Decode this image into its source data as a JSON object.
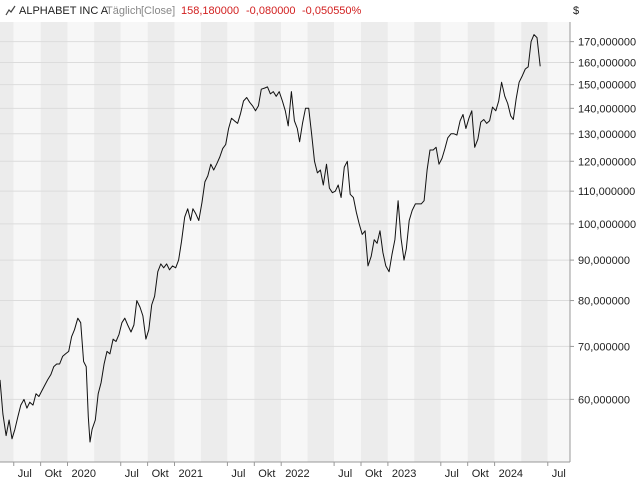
{
  "header": {
    "title": "ALPHABET INC A",
    "interval": "Täglich",
    "mode": "[Close]",
    "last": "158,180000",
    "change": "-0,080000",
    "change_pct": "-0,050550%",
    "currency": "$"
  },
  "colors": {
    "negative": "#d22020",
    "line": "#111111",
    "band_light": "#f7f7f7",
    "band_dark": "#ececec",
    "grid": "#dcdcdc",
    "axis": "#999999"
  },
  "chart_data": {
    "type": "line",
    "title": "ALPHABET INC A",
    "scale": "log",
    "ylim": [
      50,
      180
    ],
    "xlim": [
      "2019-05-15",
      "2024-09-15"
    ],
    "grid": true,
    "y_ticks": [
      {
        "value": 60,
        "label": "60,000000"
      },
      {
        "value": 70,
        "label": "70,000000"
      },
      {
        "value": 80,
        "label": "80,000000"
      },
      {
        "value": 90,
        "label": "90,000000"
      },
      {
        "value": 100,
        "label": "100,000000"
      },
      {
        "value": 110,
        "label": "110,000000"
      },
      {
        "value": 120,
        "label": "120,000000"
      },
      {
        "value": 130,
        "label": "130,000000"
      },
      {
        "value": 140,
        "label": "140,000000"
      },
      {
        "value": 150,
        "label": "150,000000"
      },
      {
        "value": 160,
        "label": "160,000000"
      },
      {
        "value": 170,
        "label": "170,000000"
      }
    ],
    "x_ticks": [
      {
        "date": "2019-07-01",
        "label": "Jul"
      },
      {
        "date": "2019-10-01",
        "label": "Okt"
      },
      {
        "date": "2020-01-01",
        "label": "2020"
      },
      {
        "date": "2020-07-01",
        "label": "Jul"
      },
      {
        "date": "2020-10-01",
        "label": "Okt"
      },
      {
        "date": "2021-01-01",
        "label": "2021"
      },
      {
        "date": "2021-07-01",
        "label": "Jul"
      },
      {
        "date": "2021-10-01",
        "label": "Okt"
      },
      {
        "date": "2022-01-01",
        "label": "2022"
      },
      {
        "date": "2022-07-01",
        "label": "Jul"
      },
      {
        "date": "2022-10-01",
        "label": "Okt"
      },
      {
        "date": "2023-01-01",
        "label": "2023"
      },
      {
        "date": "2023-07-01",
        "label": "Jul"
      },
      {
        "date": "2023-10-01",
        "label": "Okt"
      },
      {
        "date": "2024-01-01",
        "label": "2024"
      },
      {
        "date": "2024-07-01",
        "label": "Jul"
      }
    ],
    "series": [
      {
        "x": [
          "2019-05-15",
          "2019-05-25",
          "2019-06-05",
          "2019-06-15",
          "2019-06-25",
          "2019-07-05",
          "2019-07-15",
          "2019-07-25",
          "2019-08-05",
          "2019-08-15",
          "2019-08-25",
          "2019-09-05",
          "2019-09-15",
          "2019-09-25",
          "2019-10-05",
          "2019-10-15",
          "2019-10-25",
          "2019-11-05",
          "2019-11-15",
          "2019-11-25",
          "2019-12-05",
          "2019-12-15",
          "2019-12-25",
          "2020-01-05",
          "2020-01-15",
          "2020-01-25",
          "2020-02-05",
          "2020-02-15",
          "2020-02-25",
          "2020-03-05",
          "2020-03-12",
          "2020-03-18",
          "2020-03-25",
          "2020-04-05",
          "2020-04-15",
          "2020-04-25",
          "2020-05-05",
          "2020-05-15",
          "2020-05-25",
          "2020-06-05",
          "2020-06-15",
          "2020-06-25",
          "2020-07-05",
          "2020-07-15",
          "2020-07-25",
          "2020-08-05",
          "2020-08-15",
          "2020-08-25",
          "2020-09-05",
          "2020-09-15",
          "2020-09-25",
          "2020-10-05",
          "2020-10-15",
          "2020-10-25",
          "2020-11-05",
          "2020-11-15",
          "2020-11-25",
          "2020-12-05",
          "2020-12-15",
          "2020-12-25",
          "2021-01-05",
          "2021-01-15",
          "2021-01-25",
          "2021-02-05",
          "2021-02-15",
          "2021-02-25",
          "2021-03-05",
          "2021-03-15",
          "2021-03-25",
          "2021-04-05",
          "2021-04-15",
          "2021-04-25",
          "2021-05-05",
          "2021-05-15",
          "2021-05-25",
          "2021-06-05",
          "2021-06-15",
          "2021-06-25",
          "2021-07-05",
          "2021-07-15",
          "2021-07-25",
          "2021-08-05",
          "2021-08-15",
          "2021-08-25",
          "2021-09-05",
          "2021-09-15",
          "2021-09-25",
          "2021-10-05",
          "2021-10-15",
          "2021-10-25",
          "2021-11-05",
          "2021-11-15",
          "2021-11-25",
          "2021-12-05",
          "2021-12-15",
          "2021-12-25",
          "2022-01-05",
          "2022-01-15",
          "2022-01-25",
          "2022-02-05",
          "2022-02-15",
          "2022-02-25",
          "2022-03-05",
          "2022-03-15",
          "2022-03-25",
          "2022-04-05",
          "2022-04-15",
          "2022-04-25",
          "2022-05-05",
          "2022-05-15",
          "2022-05-25",
          "2022-06-05",
          "2022-06-15",
          "2022-06-25",
          "2022-07-05",
          "2022-07-15",
          "2022-07-25",
          "2022-08-05",
          "2022-08-15",
          "2022-08-25",
          "2022-09-05",
          "2022-09-15",
          "2022-09-25",
          "2022-10-05",
          "2022-10-15",
          "2022-10-25",
          "2022-11-05",
          "2022-11-15",
          "2022-11-25",
          "2022-12-05",
          "2022-12-15",
          "2022-12-25",
          "2023-01-05",
          "2023-01-15",
          "2023-01-25",
          "2023-02-05",
          "2023-02-15",
          "2023-02-25",
          "2023-03-05",
          "2023-03-15",
          "2023-03-25",
          "2023-04-05",
          "2023-04-15",
          "2023-04-25",
          "2023-05-05",
          "2023-05-15",
          "2023-05-25",
          "2023-06-05",
          "2023-06-15",
          "2023-06-25",
          "2023-07-05",
          "2023-07-15",
          "2023-07-25",
          "2023-08-05",
          "2023-08-15",
          "2023-08-25",
          "2023-09-05",
          "2023-09-15",
          "2023-09-25",
          "2023-10-05",
          "2023-10-15",
          "2023-10-25",
          "2023-11-05",
          "2023-11-15",
          "2023-11-25",
          "2023-12-05",
          "2023-12-15",
          "2023-12-25",
          "2024-01-05",
          "2024-01-15",
          "2024-01-25",
          "2024-02-05",
          "2024-02-15",
          "2024-02-25",
          "2024-03-05",
          "2024-03-15",
          "2024-03-25",
          "2024-04-05",
          "2024-04-15",
          "2024-04-25",
          "2024-05-05",
          "2024-05-15",
          "2024-05-25",
          "2024-06-05"
        ],
        "y": [
          63.5,
          57.5,
          54.0,
          56.5,
          53.5,
          55.0,
          57.0,
          59.0,
          60.0,
          58.5,
          59.5,
          59.0,
          61.0,
          60.5,
          61.5,
          62.5,
          63.5,
          64.5,
          66.0,
          66.5,
          66.5,
          68.0,
          68.5,
          69.0,
          72.0,
          73.5,
          76.0,
          75.0,
          67.0,
          66.0,
          57.0,
          53.0,
          55.0,
          56.5,
          61.0,
          63.0,
          66.5,
          69.0,
          68.5,
          71.5,
          71.0,
          72.5,
          75.0,
          76.0,
          74.5,
          73.0,
          74.5,
          80.0,
          78.5,
          76.5,
          71.5,
          73.5,
          79.0,
          81.0,
          87.0,
          89.0,
          88.0,
          89.0,
          87.5,
          88.5,
          88.0,
          90.0,
          95.0,
          102.0,
          104.5,
          101.0,
          104.5,
          103.0,
          101.0,
          106.5,
          113.0,
          115.0,
          119.0,
          117.0,
          119.0,
          121.5,
          124.5,
          126.0,
          132.0,
          136.0,
          135.0,
          134.0,
          138.0,
          143.0,
          144.5,
          142.5,
          141.0,
          139.0,
          141.0,
          148.0,
          148.5,
          149.0,
          146.0,
          147.0,
          145.0,
          147.0,
          143.0,
          139.0,
          133.0,
          147.0,
          135.0,
          132.0,
          127.0,
          134.0,
          140.0,
          140.0,
          130.0,
          120.0,
          116.0,
          117.0,
          112.0,
          119.0,
          111.0,
          109.5,
          110.0,
          112.0,
          108.0,
          118.0,
          120.0,
          109.0,
          108.0,
          103.5,
          100.0,
          97.0,
          98.0,
          88.5,
          91.0,
          95.5,
          94.5,
          98.0,
          92.0,
          88.5,
          87.0,
          91.5,
          95.5,
          107.0,
          96.0,
          90.0,
          93.0,
          101.0,
          104.0,
          106.0,
          106.0,
          106.0,
          107.0,
          117.0,
          124.0,
          124.0,
          125.0,
          119.0,
          121.0,
          124.5,
          128.5,
          130.0,
          130.0,
          129.5,
          135.0,
          137.5,
          132.0,
          136.0,
          139.0,
          125.0,
          128.0,
          134.5,
          135.5,
          134.0,
          135.0,
          140.5,
          139.0,
          143.0,
          151.0,
          145.0,
          142.0,
          137.0,
          135.5,
          144.0,
          151.0,
          154.0,
          157.0,
          158.0,
          170.0,
          173.5,
          172.0,
          158.2
        ]
      }
    ]
  }
}
